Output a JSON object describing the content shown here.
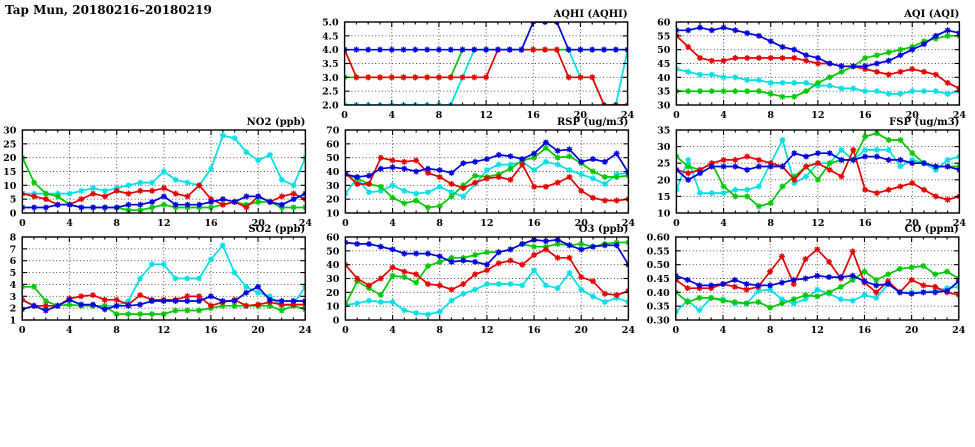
{
  "title": "Tap Mun, 20180216–20180219",
  "colors": {
    "blue": "#0000dd",
    "red": "#e60000",
    "green": "#00c800",
    "cyan": "#00dfe6"
  },
  "x_axis": {
    "range": [
      0,
      24
    ],
    "ticks": [
      0,
      4,
      8,
      12,
      16,
      20,
      24
    ],
    "minor_step": 1,
    "step_per_point": 1
  },
  "chart_data": [
    {
      "key": "aqhi",
      "type": "line",
      "title": "AQHI (AQHI)",
      "ylim": [
        2,
        5
      ],
      "yticks": [
        2,
        2.5,
        3,
        3.5,
        4,
        4.5,
        5
      ],
      "ytick_decimals": 1,
      "series": [
        {
          "name": "cyan",
          "color": "cyan",
          "values": [
            2,
            2,
            2,
            2,
            2,
            2,
            2,
            2,
            2,
            2,
            3,
            4,
            4,
            4,
            4,
            4,
            4,
            4,
            4,
            4,
            3,
            3,
            2,
            2,
            4
          ]
        },
        {
          "name": "green",
          "color": "green",
          "values": [
            3,
            3,
            3,
            3,
            3,
            3,
            3,
            3,
            3,
            3,
            4,
            4,
            4,
            4,
            4,
            4,
            4,
            4,
            4,
            4,
            4,
            4,
            4,
            4,
            4
          ]
        },
        {
          "name": "red",
          "color": "red",
          "values": [
            4,
            3,
            3,
            3,
            3,
            3,
            3,
            3,
            3,
            3,
            3,
            3,
            3,
            4,
            4,
            4,
            4,
            4,
            4,
            3,
            3,
            3,
            2,
            2,
            2
          ]
        },
        {
          "name": "blue",
          "color": "blue",
          "values": [
            4,
            4,
            4,
            4,
            4,
            4,
            4,
            4,
            4,
            4,
            4,
            4,
            4,
            4,
            4,
            4,
            5,
            5,
            5,
            4,
            4,
            4,
            4,
            4,
            4
          ]
        }
      ]
    },
    {
      "key": "aqi",
      "type": "line",
      "title": "AQI (AQI)",
      "ylim": [
        30,
        60
      ],
      "yticks": [
        30,
        35,
        40,
        45,
        50,
        55,
        60
      ],
      "ytick_decimals": 0,
      "series": [
        {
          "name": "cyan",
          "color": "cyan",
          "values": [
            43,
            42,
            41,
            41,
            40,
            40,
            39,
            39,
            38,
            38,
            38,
            38,
            37,
            37,
            36,
            36,
            35,
            35,
            34,
            34,
            35,
            35,
            35,
            34,
            35
          ]
        },
        {
          "name": "green",
          "color": "green",
          "values": [
            35,
            35,
            35,
            35,
            35,
            35,
            35,
            35,
            34,
            33,
            33,
            35,
            38,
            40,
            42,
            44,
            47,
            48,
            49,
            50,
            51,
            53,
            54,
            55,
            55
          ]
        },
        {
          "name": "red",
          "color": "red",
          "values": [
            55,
            51,
            47,
            46,
            46,
            47,
            47,
            47,
            47,
            47,
            47,
            46,
            45,
            45,
            44,
            44,
            43,
            42,
            41,
            42,
            43,
            42,
            41,
            38,
            36
          ]
        },
        {
          "name": "blue",
          "color": "blue",
          "values": [
            57,
            57,
            58,
            57,
            58,
            57,
            56,
            55,
            53,
            51,
            50,
            48,
            47,
            45,
            44,
            44,
            44,
            45,
            46,
            48,
            50,
            52,
            55,
            57,
            56
          ]
        }
      ]
    },
    {
      "key": "no2",
      "type": "line",
      "title": "NO2 (ppb)",
      "ylim": [
        0,
        30
      ],
      "yticks": [
        0,
        5,
        10,
        15,
        20,
        25,
        30
      ],
      "ytick_decimals": 0,
      "series": [
        {
          "name": "cyan",
          "color": "cyan",
          "values": [
            7,
            7,
            7,
            7,
            7,
            8,
            9,
            8,
            9,
            10,
            11,
            11,
            15,
            12,
            11,
            10,
            16,
            28,
            27,
            22,
            19,
            21,
            12,
            10,
            20
          ]
        },
        {
          "name": "green",
          "color": "green",
          "values": [
            20,
            11,
            7,
            6,
            3,
            2,
            2,
            2,
            2,
            1,
            1,
            2,
            3,
            2,
            2,
            2,
            2,
            3,
            4,
            3,
            4,
            4,
            2,
            2,
            2
          ]
        },
        {
          "name": "red",
          "color": "red",
          "values": [
            7,
            6,
            5,
            3,
            3,
            5,
            7,
            6,
            8,
            7,
            8,
            8,
            9,
            7,
            6,
            10,
            5,
            3,
            4,
            2,
            6,
            4,
            6,
            7,
            5
          ]
        },
        {
          "name": "blue",
          "color": "blue",
          "values": [
            2,
            2,
            2,
            3,
            3,
            2,
            2,
            2,
            2,
            3,
            3,
            4,
            6,
            3,
            3,
            3,
            4,
            5,
            4,
            6,
            6,
            4,
            3,
            5,
            7
          ]
        }
      ]
    },
    {
      "key": "rsp",
      "type": "line",
      "title": "RSP (ug/m3)",
      "ylim": [
        10,
        70
      ],
      "yticks": [
        10,
        20,
        30,
        40,
        50,
        60,
        70
      ],
      "ytick_decimals": 0,
      "series": [
        {
          "name": "cyan",
          "color": "cyan",
          "values": [
            24,
            35,
            25,
            26,
            30,
            26,
            24,
            25,
            29,
            25,
            22,
            31,
            41,
            45,
            45,
            47,
            41,
            47,
            45,
            41,
            38,
            35,
            31,
            38,
            39
          ]
        },
        {
          "name": "green",
          "color": "green",
          "values": [
            38,
            35,
            31,
            29,
            21,
            17,
            19,
            14,
            15,
            22,
            30,
            37,
            36,
            38,
            42,
            48,
            50,
            57,
            50,
            51,
            46,
            40,
            36,
            36,
            37
          ]
        },
        {
          "name": "red",
          "color": "red",
          "values": [
            39,
            31,
            31,
            50,
            48,
            47,
            48,
            39,
            36,
            31,
            28,
            32,
            35,
            36,
            34,
            45,
            29,
            29,
            32,
            36,
            26,
            21,
            19,
            19,
            20
          ]
        },
        {
          "name": "blue",
          "color": "blue",
          "values": [
            38,
            36,
            37,
            42,
            43,
            42,
            40,
            42,
            41,
            39,
            46,
            47,
            49,
            52,
            51,
            49,
            53,
            61,
            55,
            56,
            47,
            49,
            47,
            53,
            39
          ]
        }
      ]
    },
    {
      "key": "fsp",
      "type": "line",
      "title": "FSP (ug/m3)",
      "ylim": [
        10,
        35
      ],
      "yticks": [
        10,
        15,
        20,
        25,
        30,
        35
      ],
      "ytick_decimals": 0,
      "series": [
        {
          "name": "cyan",
          "color": "cyan",
          "values": [
            17,
            26,
            16,
            16,
            16,
            17,
            17,
            18,
            25,
            32,
            19,
            21,
            25,
            25,
            29,
            26,
            29,
            29,
            29,
            24,
            26,
            25,
            23,
            26,
            27
          ]
        },
        {
          "name": "green",
          "color": "green",
          "values": [
            27,
            24,
            23,
            25,
            18,
            15,
            15,
            12,
            13,
            18,
            21,
            24,
            20,
            25,
            26,
            26,
            33,
            34,
            32,
            32,
            28,
            25,
            24,
            24,
            24
          ]
        },
        {
          "name": "red",
          "color": "red",
          "values": [
            23,
            22,
            23,
            25,
            26,
            26,
            27,
            26,
            25,
            24,
            20,
            24,
            25,
            23,
            21,
            29,
            17,
            16,
            17,
            18,
            19,
            17,
            15,
            14,
            15
          ]
        },
        {
          "name": "blue",
          "color": "blue",
          "values": [
            23,
            20,
            22,
            24,
            24,
            24,
            23,
            24,
            24,
            24,
            28,
            27,
            28,
            28,
            26,
            26,
            27,
            27,
            26,
            26,
            25,
            25,
            24,
            24,
            23
          ]
        }
      ]
    },
    {
      "key": "so2",
      "type": "line",
      "title": "SO2 (ppb)",
      "ylim": [
        1,
        8
      ],
      "yticks": [
        1,
        2,
        3,
        4,
        5,
        6,
        7,
        8
      ],
      "ytick_decimals": 0,
      "series": [
        {
          "name": "cyan",
          "color": "cyan",
          "values": [
            2.7,
            2.2,
            2.2,
            2.2,
            2.7,
            2.3,
            2.2,
            2.2,
            2.2,
            2.6,
            4.5,
            5.7,
            5.7,
            4.5,
            4.5,
            4.5,
            6.1,
            7.3,
            5.0,
            3.8,
            3.3,
            3.0,
            2.2,
            2.3,
            3.8
          ]
        },
        {
          "name": "green",
          "color": "green",
          "values": [
            3.8,
            3.8,
            2.6,
            2.2,
            2.3,
            2.2,
            2.2,
            2.2,
            1.5,
            1.5,
            1.5,
            1.5,
            1.5,
            1.8,
            1.8,
            1.8,
            2.0,
            2.2,
            2.2,
            2.2,
            2.2,
            2.2,
            1.8,
            2.2,
            1.9
          ]
        },
        {
          "name": "red",
          "color": "red",
          "values": [
            2.7,
            2.2,
            2.2,
            2.2,
            2.8,
            3.0,
            3.1,
            2.7,
            2.7,
            2.3,
            3.1,
            2.7,
            2.7,
            2.7,
            3.0,
            3.0,
            2.2,
            2.5,
            2.7,
            2.2,
            2.3,
            2.5,
            2.3,
            2.3,
            2.3
          ]
        },
        {
          "name": "blue",
          "color": "blue",
          "values": [
            1.9,
            2.2,
            1.8,
            2.2,
            2.7,
            2.3,
            2.3,
            1.9,
            2.2,
            2.2,
            2.3,
            2.6,
            2.6,
            2.6,
            2.6,
            2.6,
            3.0,
            2.6,
            2.6,
            3.3,
            3.8,
            2.7,
            2.6,
            2.6,
            2.6
          ]
        }
      ]
    },
    {
      "key": "o3",
      "type": "line",
      "title": "O3 (ppb)",
      "ylim": [
        0,
        60
      ],
      "yticks": [
        0,
        10,
        20,
        30,
        40,
        50,
        60
      ],
      "ytick_decimals": 0,
      "series": [
        {
          "name": "cyan",
          "color": "cyan",
          "values": [
            11,
            12,
            14,
            13,
            13,
            7,
            5,
            4,
            6,
            14,
            19,
            22,
            26,
            26,
            26,
            25,
            36,
            25,
            23,
            34,
            22,
            17,
            13,
            16,
            13
          ]
        },
        {
          "name": "green",
          "color": "green",
          "values": [
            11,
            28,
            23,
            18,
            32,
            31,
            27,
            39,
            42,
            45,
            45,
            47,
            49,
            49,
            51,
            55,
            53,
            53,
            55,
            54,
            55,
            53,
            55,
            56,
            56
          ]
        },
        {
          "name": "red",
          "color": "red",
          "values": [
            40,
            30,
            25,
            30,
            38,
            35,
            33,
            26,
            25,
            22,
            26,
            33,
            36,
            41,
            43,
            40,
            47,
            51,
            45,
            45,
            31,
            28,
            19,
            18,
            21
          ]
        },
        {
          "name": "blue",
          "color": "blue",
          "values": [
            56,
            55,
            55,
            53,
            51,
            48,
            48,
            48,
            46,
            42,
            43,
            42,
            40,
            49,
            51,
            55,
            58,
            57,
            58,
            54,
            51,
            53,
            54,
            54,
            40
          ]
        }
      ]
    },
    {
      "key": "co",
      "type": "line",
      "title": "CO (ppm)",
      "ylim": [
        0.3,
        0.6
      ],
      "yticks": [
        0.3,
        0.35,
        0.4,
        0.45,
        0.5,
        0.55,
        0.6
      ],
      "ytick_decimals": 2,
      "series": [
        {
          "name": "cyan",
          "color": "cyan",
          "values": [
            0.33,
            0.37,
            0.335,
            0.38,
            0.375,
            0.36,
            0.36,
            0.405,
            0.41,
            0.375,
            0.36,
            0.375,
            0.41,
            0.395,
            0.375,
            0.37,
            0.39,
            0.38,
            0.43,
            0.4,
            0.4,
            0.4,
            0.405,
            0.415,
            0.42
          ]
        },
        {
          "name": "green",
          "color": "green",
          "values": [
            0.4,
            0.365,
            0.38,
            0.38,
            0.37,
            0.365,
            0.36,
            0.365,
            0.345,
            0.36,
            0.375,
            0.39,
            0.385,
            0.4,
            0.42,
            0.445,
            0.475,
            0.445,
            0.465,
            0.485,
            0.49,
            0.495,
            0.465,
            0.475,
            0.45
          ]
        },
        {
          "name": "red",
          "color": "red",
          "values": [
            0.445,
            0.415,
            0.415,
            0.415,
            0.43,
            0.42,
            0.41,
            0.42,
            0.475,
            0.53,
            0.43,
            0.52,
            0.555,
            0.51,
            0.45,
            0.548,
            0.435,
            0.4,
            0.44,
            0.4,
            0.445,
            0.425,
            0.42,
            0.4,
            0.39
          ]
        },
        {
          "name": "blue",
          "color": "blue",
          "values": [
            0.46,
            0.445,
            0.425,
            0.425,
            0.43,
            0.445,
            0.43,
            0.425,
            0.425,
            0.435,
            0.445,
            0.45,
            0.46,
            0.455,
            0.455,
            0.46,
            0.44,
            0.425,
            0.43,
            0.4,
            0.395,
            0.4,
            0.4,
            0.405,
            0.44
          ]
        }
      ]
    }
  ]
}
